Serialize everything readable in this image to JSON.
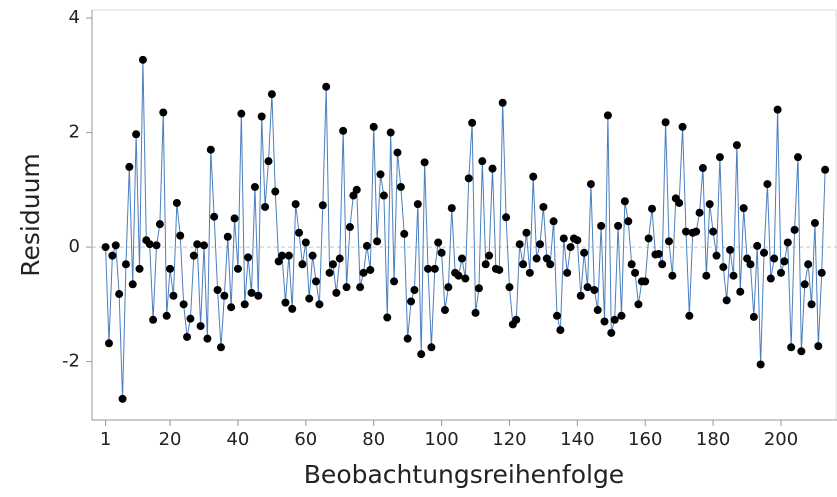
{
  "chart_data": {
    "type": "line",
    "xlabel": "Beobachtungsreihenfolge",
    "ylabel": "Residuum",
    "xlim": [
      -3,
      216.5
    ],
    "ylim": [
      -3.02,
      4.14
    ],
    "xticks": [
      1,
      20,
      40,
      60,
      80,
      100,
      120,
      140,
      160,
      180,
      200
    ],
    "yticks": [
      -2,
      0,
      2,
      4
    ],
    "hline": 0,
    "line_color": "#4a7fbf",
    "marker_color": "#000000",
    "x": [
      1,
      2,
      3,
      4,
      5,
      6,
      7,
      8,
      9,
      10,
      11,
      12,
      13,
      14,
      15,
      16,
      17,
      18,
      19,
      20,
      21,
      22,
      23,
      24,
      25,
      26,
      27,
      28,
      29,
      30,
      31,
      32,
      33,
      34,
      35,
      36,
      37,
      38,
      39,
      40,
      41,
      42,
      43,
      44,
      45,
      46,
      47,
      48,
      49,
      50,
      51,
      52,
      53,
      54,
      55,
      56,
      57,
      58,
      59,
      60,
      61,
      62,
      63,
      64,
      65,
      66,
      67,
      68,
      69,
      70,
      71,
      72,
      73,
      74,
      75,
      76,
      77,
      78,
      79,
      80,
      81,
      82,
      83,
      84,
      85,
      86,
      87,
      88,
      89,
      90,
      91,
      92,
      93,
      94,
      95,
      96,
      97,
      98,
      99,
      100,
      101,
      102,
      103,
      104,
      105,
      106,
      107,
      108,
      109,
      110,
      111,
      112,
      113,
      114,
      115,
      116,
      117,
      118,
      119,
      120,
      121,
      122,
      123,
      124,
      125,
      126,
      127,
      128,
      129,
      130,
      131,
      132,
      133,
      134,
      135,
      136,
      137,
      138,
      139,
      140,
      141,
      142,
      143,
      144,
      145,
      146,
      147,
      148,
      149,
      150,
      151,
      152,
      153,
      154,
      155,
      156,
      157,
      158,
      159,
      160,
      161,
      162,
      163,
      164,
      165,
      166,
      167,
      168,
      169,
      170,
      171,
      172,
      173,
      174,
      175,
      176,
      177,
      178,
      179,
      180,
      181,
      182,
      183,
      184,
      185,
      186,
      187,
      188,
      189,
      190,
      191,
      192,
      193,
      194,
      195,
      196,
      197,
      198,
      199,
      200,
      201,
      202,
      203,
      204,
      205,
      206,
      207,
      208,
      209,
      210,
      211,
      212,
      213
    ],
    "values": [
      0,
      -1.68,
      -0.15,
      0.03,
      -0.82,
      -2.65,
      -0.3,
      1.4,
      -0.65,
      1.97,
      -0.38,
      3.27,
      0.12,
      0.05,
      -1.27,
      0.03,
      0.4,
      2.35,
      -1.2,
      -0.38,
      -0.85,
      0.77,
      0.2,
      -1.0,
      -1.57,
      -1.25,
      -0.15,
      0.05,
      -1.38,
      0.03,
      -1.6,
      1.7,
      0.53,
      -0.75,
      -1.75,
      -0.85,
      0.18,
      -1.05,
      0.5,
      -0.38,
      2.33,
      -1.0,
      -0.18,
      -0.8,
      1.05,
      -0.85,
      2.28,
      0.7,
      1.5,
      2.67,
      0.97,
      -0.25,
      -0.15,
      -0.97,
      -0.15,
      -1.08,
      0.75,
      0.25,
      -0.3,
      0.08,
      -0.9,
      -0.15,
      -0.6,
      -1.0,
      0.73,
      2.8,
      -0.45,
      -0.3,
      -0.8,
      -0.2,
      2.03,
      -0.7,
      0.35,
      0.9,
      1.0,
      -0.7,
      -0.45,
      0.02,
      -0.4,
      2.1,
      0.1,
      1.27,
      0.9,
      -1.23,
      2.0,
      -0.6,
      1.65,
      1.05,
      0.23,
      -1.6,
      -0.95,
      -0.75,
      0.75,
      -1.87,
      1.48,
      -0.38,
      -1.75,
      -0.38,
      0.08,
      -0.1,
      -1.1,
      -0.7,
      0.68,
      -0.45,
      -0.5,
      -0.2,
      -0.55,
      1.2,
      2.17,
      -1.15,
      -0.72,
      1.5,
      -0.3,
      -0.15,
      1.37,
      -0.38,
      -0.4,
      2.52,
      0.52,
      -0.7,
      -1.35,
      -1.27,
      0.05,
      -0.3,
      0.25,
      -0.45,
      1.23,
      -0.2,
      0.05,
      0.7,
      -0.2,
      -0.3,
      0.45,
      -1.2,
      -1.45,
      0.15,
      -0.45,
      0.0,
      0.15,
      0.12,
      -0.85,
      -0.1,
      -0.7,
      1.1,
      -0.75,
      -1.1,
      0.37,
      -1.3,
      2.3,
      -1.5,
      -1.27,
      0.37,
      -1.2,
      0.8,
      0.45,
      -0.3,
      -0.45,
      -1.0,
      -0.6,
      -0.6,
      0.15,
      0.67,
      -0.13,
      -0.12,
      -0.3,
      2.18,
      0.1,
      -0.5,
      0.85,
      0.77,
      2.1,
      0.27,
      -1.2,
      0.25,
      0.27,
      0.6,
      1.38,
      -0.5,
      0.75,
      0.27,
      -0.15,
      1.57,
      -0.35,
      -0.93,
      -0.05,
      -0.5,
      1.78,
      -0.78,
      0.68,
      -0.2,
      -0.3,
      -1.22,
      0.02,
      -2.05,
      -0.1,
      1.1,
      -0.55,
      -0.2,
      2.4,
      -0.45,
      -0.25,
      0.08,
      -1.75,
      0.3,
      1.57,
      -1.82,
      -0.65,
      -0.3,
      -1.0,
      0.42,
      -1.73,
      -0.45,
      1.35
    ]
  }
}
